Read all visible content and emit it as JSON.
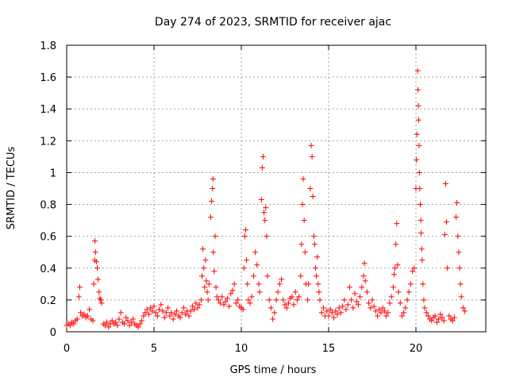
{
  "chart_data": {
    "type": "scatter",
    "title": "Day 274 of 2023, SRMTID for receiver ajac",
    "xlabel": "GPS time / hours",
    "ylabel": "SRMTID / TECUs",
    "xlim": [
      0,
      24
    ],
    "ylim": [
      0,
      1.8
    ],
    "x_ticks": [
      0,
      5,
      10,
      15,
      20
    ],
    "x_tick_labels": [
      "0",
      "5",
      "10",
      "15",
      "20"
    ],
    "y_ticks": [
      0,
      0.2,
      0.4,
      0.6,
      0.8,
      1,
      1.2,
      1.4,
      1.6,
      1.8
    ],
    "y_tick_labels": [
      "0",
      "0.2",
      "0.4",
      "0.6",
      "0.8",
      "1",
      "1.2",
      "1.4",
      "1.6",
      "1.8"
    ],
    "grid": true,
    "marker": "+",
    "color": "#ff0000",
    "series": [
      {
        "name": "SRMTID",
        "points": [
          [
            0.0,
            0.04
          ],
          [
            0.1,
            0.05
          ],
          [
            0.2,
            0.04
          ],
          [
            0.3,
            0.06
          ],
          [
            0.4,
            0.05
          ],
          [
            0.5,
            0.07
          ],
          [
            0.6,
            0.08
          ],
          [
            0.7,
            0.22
          ],
          [
            0.75,
            0.28
          ],
          [
            0.8,
            0.12
          ],
          [
            0.9,
            0.1
          ],
          [
            1.0,
            0.11
          ],
          [
            1.1,
            0.09
          ],
          [
            1.2,
            0.1
          ],
          [
            1.3,
            0.14
          ],
          [
            1.4,
            0.08
          ],
          [
            1.5,
            0.07
          ],
          [
            1.55,
            0.3
          ],
          [
            1.6,
            0.45
          ],
          [
            1.62,
            0.57
          ],
          [
            1.65,
            0.5
          ],
          [
            1.7,
            0.44
          ],
          [
            1.75,
            0.4
          ],
          [
            1.8,
            0.33
          ],
          [
            1.85,
            0.25
          ],
          [
            1.9,
            0.21
          ],
          [
            1.95,
            0.2
          ],
          [
            2.0,
            0.18
          ],
          [
            2.1,
            0.05
          ],
          [
            2.2,
            0.04
          ],
          [
            2.3,
            0.06
          ],
          [
            2.4,
            0.03
          ],
          [
            2.5,
            0.05
          ],
          [
            2.6,
            0.07
          ],
          [
            2.7,
            0.05
          ],
          [
            2.8,
            0.06
          ],
          [
            2.9,
            0.04
          ],
          [
            3.0,
            0.08
          ],
          [
            3.1,
            0.12
          ],
          [
            3.2,
            0.06
          ],
          [
            3.3,
            0.05
          ],
          [
            3.4,
            0.09
          ],
          [
            3.5,
            0.07
          ],
          [
            3.6,
            0.04
          ],
          [
            3.7,
            0.06
          ],
          [
            3.8,
            0.08
          ],
          [
            3.9,
            0.05
          ],
          [
            4.0,
            0.04
          ],
          [
            4.1,
            0.03
          ],
          [
            4.2,
            0.05
          ],
          [
            4.3,
            0.07
          ],
          [
            4.4,
            0.1
          ],
          [
            4.5,
            0.12
          ],
          [
            4.6,
            0.14
          ],
          [
            4.7,
            0.11
          ],
          [
            4.8,
            0.15
          ],
          [
            4.9,
            0.13
          ],
          [
            5.0,
            0.16
          ],
          [
            5.1,
            0.12
          ],
          [
            5.2,
            0.1
          ],
          [
            5.3,
            0.14
          ],
          [
            5.4,
            0.17
          ],
          [
            5.5,
            0.13
          ],
          [
            5.6,
            0.09
          ],
          [
            5.7,
            0.12
          ],
          [
            5.8,
            0.15
          ],
          [
            5.9,
            0.1
          ],
          [
            6.0,
            0.12
          ],
          [
            6.1,
            0.08
          ],
          [
            6.2,
            0.11
          ],
          [
            6.3,
            0.13
          ],
          [
            6.4,
            0.1
          ],
          [
            6.5,
            0.09
          ],
          [
            6.6,
            0.12
          ],
          [
            6.7,
            0.15
          ],
          [
            6.8,
            0.11
          ],
          [
            6.9,
            0.13
          ],
          [
            7.0,
            0.1
          ],
          [
            7.1,
            0.13
          ],
          [
            7.2,
            0.16
          ],
          [
            7.3,
            0.14
          ],
          [
            7.4,
            0.18
          ],
          [
            7.5,
            0.15
          ],
          [
            7.6,
            0.17
          ],
          [
            7.7,
            0.2
          ],
          [
            7.75,
            0.35
          ],
          [
            7.8,
            0.52
          ],
          [
            7.85,
            0.4
          ],
          [
            7.9,
            0.28
          ],
          [
            7.95,
            0.45
          ],
          [
            8.0,
            0.32
          ],
          [
            8.05,
            0.25
          ],
          [
            8.1,
            0.2
          ],
          [
            8.15,
            0.3
          ],
          [
            8.25,
            0.72
          ],
          [
            8.3,
            0.82
          ],
          [
            8.35,
            0.9
          ],
          [
            8.38,
            0.96
          ],
          [
            8.4,
            0.5
          ],
          [
            8.45,
            0.38
          ],
          [
            8.5,
            0.6
          ],
          [
            8.55,
            0.28
          ],
          [
            8.6,
            0.22
          ],
          [
            8.7,
            0.2
          ],
          [
            8.8,
            0.18
          ],
          [
            8.9,
            0.22
          ],
          [
            9.0,
            0.17
          ],
          [
            9.1,
            0.19
          ],
          [
            9.2,
            0.21
          ],
          [
            9.3,
            0.16
          ],
          [
            9.4,
            0.24
          ],
          [
            9.5,
            0.26
          ],
          [
            9.6,
            0.3
          ],
          [
            9.7,
            0.18
          ],
          [
            9.8,
            0.2
          ],
          [
            9.9,
            0.16
          ],
          [
            10.0,
            0.15
          ],
          [
            10.1,
            0.14
          ],
          [
            10.15,
            0.4
          ],
          [
            10.2,
            0.6
          ],
          [
            10.25,
            0.64
          ],
          [
            10.3,
            0.45
          ],
          [
            10.35,
            0.3
          ],
          [
            10.4,
            0.2
          ],
          [
            10.5,
            0.18
          ],
          [
            10.6,
            0.22
          ],
          [
            10.7,
            0.35
          ],
          [
            10.8,
            0.5
          ],
          [
            10.9,
            0.42
          ],
          [
            11.0,
            0.3
          ],
          [
            11.05,
            0.25
          ],
          [
            11.15,
            0.83
          ],
          [
            11.2,
            1.03
          ],
          [
            11.25,
            1.1
          ],
          [
            11.3,
            0.75
          ],
          [
            11.35,
            0.7
          ],
          [
            11.4,
            0.78
          ],
          [
            11.45,
            0.6
          ],
          [
            11.5,
            0.35
          ],
          [
            11.6,
            0.2
          ],
          [
            11.7,
            0.15
          ],
          [
            11.8,
            0.08
          ],
          [
            11.9,
            0.12
          ],
          [
            12.0,
            0.2
          ],
          [
            12.1,
            0.25
          ],
          [
            12.2,
            0.3
          ],
          [
            12.3,
            0.33
          ],
          [
            12.4,
            0.2
          ],
          [
            12.5,
            0.17
          ],
          [
            12.6,
            0.15
          ],
          [
            12.7,
            0.18
          ],
          [
            12.8,
            0.21
          ],
          [
            12.9,
            0.22
          ],
          [
            13.0,
            0.17
          ],
          [
            13.1,
            0.25
          ],
          [
            13.2,
            0.2
          ],
          [
            13.3,
            0.22
          ],
          [
            13.4,
            0.35
          ],
          [
            13.45,
            0.55
          ],
          [
            13.5,
            0.8
          ],
          [
            13.55,
            0.96
          ],
          [
            13.6,
            0.7
          ],
          [
            13.65,
            0.5
          ],
          [
            13.7,
            0.3
          ],
          [
            13.8,
            0.2
          ],
          [
            13.85,
            0.3
          ],
          [
            13.95,
            0.9
          ],
          [
            14.0,
            1.17
          ],
          [
            14.05,
            1.1
          ],
          [
            14.1,
            0.85
          ],
          [
            14.15,
            0.6
          ],
          [
            14.2,
            0.55
          ],
          [
            14.25,
            0.4
          ],
          [
            14.3,
            0.35
          ],
          [
            14.35,
            0.47
          ],
          [
            14.4,
            0.3
          ],
          [
            14.45,
            0.25
          ],
          [
            14.5,
            0.2
          ],
          [
            14.6,
            0.12
          ],
          [
            14.7,
            0.15
          ],
          [
            14.8,
            0.1
          ],
          [
            14.9,
            0.13
          ],
          [
            15.0,
            0.1
          ],
          [
            15.1,
            0.14
          ],
          [
            15.2,
            0.12
          ],
          [
            15.3,
            0.09
          ],
          [
            15.4,
            0.13
          ],
          [
            15.5,
            0.11
          ],
          [
            15.6,
            0.15
          ],
          [
            15.7,
            0.12
          ],
          [
            15.8,
            0.16
          ],
          [
            15.9,
            0.2
          ],
          [
            16.0,
            0.14
          ],
          [
            16.1,
            0.17
          ],
          [
            16.2,
            0.28
          ],
          [
            16.3,
            0.2
          ],
          [
            16.4,
            0.15
          ],
          [
            16.5,
            0.24
          ],
          [
            16.6,
            0.19
          ],
          [
            16.7,
            0.17
          ],
          [
            16.8,
            0.22
          ],
          [
            16.9,
            0.28
          ],
          [
            17.0,
            0.35
          ],
          [
            17.05,
            0.43
          ],
          [
            17.1,
            0.32
          ],
          [
            17.2,
            0.25
          ],
          [
            17.3,
            0.18
          ],
          [
            17.4,
            0.15
          ],
          [
            17.5,
            0.2
          ],
          [
            17.6,
            0.16
          ],
          [
            17.7,
            0.13
          ],
          [
            17.8,
            0.1
          ],
          [
            17.9,
            0.14
          ],
          [
            18.0,
            0.12
          ],
          [
            18.1,
            0.15
          ],
          [
            18.2,
            0.13
          ],
          [
            18.3,
            0.1
          ],
          [
            18.4,
            0.12
          ],
          [
            18.5,
            0.18
          ],
          [
            18.6,
            0.22
          ],
          [
            18.7,
            0.28
          ],
          [
            18.75,
            0.36
          ],
          [
            18.8,
            0.4
          ],
          [
            18.85,
            0.55
          ],
          [
            18.9,
            0.68
          ],
          [
            18.95,
            0.42
          ],
          [
            19.0,
            0.25
          ],
          [
            19.1,
            0.18
          ],
          [
            19.2,
            0.1
          ],
          [
            19.3,
            0.12
          ],
          [
            19.4,
            0.15
          ],
          [
            19.5,
            0.2
          ],
          [
            19.6,
            0.25
          ],
          [
            19.7,
            0.3
          ],
          [
            19.8,
            0.38
          ],
          [
            19.9,
            0.4
          ],
          [
            20.0,
            0.9
          ],
          [
            20.03,
            1.08
          ],
          [
            20.06,
            1.24
          ],
          [
            20.1,
            1.64
          ],
          [
            20.12,
            1.52
          ],
          [
            20.14,
            1.42
          ],
          [
            20.16,
            1.33
          ],
          [
            20.18,
            1.17
          ],
          [
            20.2,
            1.0
          ],
          [
            20.22,
            0.9
          ],
          [
            20.25,
            0.8
          ],
          [
            20.28,
            0.7
          ],
          [
            20.3,
            0.62
          ],
          [
            20.33,
            0.52
          ],
          [
            20.36,
            0.45
          ],
          [
            20.4,
            0.3
          ],
          [
            20.45,
            0.2
          ],
          [
            20.5,
            0.15
          ],
          [
            20.6,
            0.12
          ],
          [
            20.7,
            0.1
          ],
          [
            20.8,
            0.08
          ],
          [
            20.9,
            0.07
          ],
          [
            21.0,
            0.09
          ],
          [
            21.1,
            0.1
          ],
          [
            21.2,
            0.06
          ],
          [
            21.3,
            0.08
          ],
          [
            21.4,
            0.11
          ],
          [
            21.5,
            0.09
          ],
          [
            21.6,
            0.07
          ],
          [
            21.65,
            0.61
          ],
          [
            21.7,
            0.93
          ],
          [
            21.75,
            0.69
          ],
          [
            21.8,
            0.4
          ],
          [
            21.9,
            0.1
          ],
          [
            22.0,
            0.08
          ],
          [
            22.1,
            0.07
          ],
          [
            22.2,
            0.09
          ],
          [
            22.3,
            0.72
          ],
          [
            22.35,
            0.81
          ],
          [
            22.4,
            0.6
          ],
          [
            22.45,
            0.5
          ],
          [
            22.5,
            0.4
          ],
          [
            22.55,
            0.3
          ],
          [
            22.6,
            0.22
          ],
          [
            22.7,
            0.15
          ],
          [
            22.8,
            0.13
          ]
        ]
      }
    ]
  }
}
